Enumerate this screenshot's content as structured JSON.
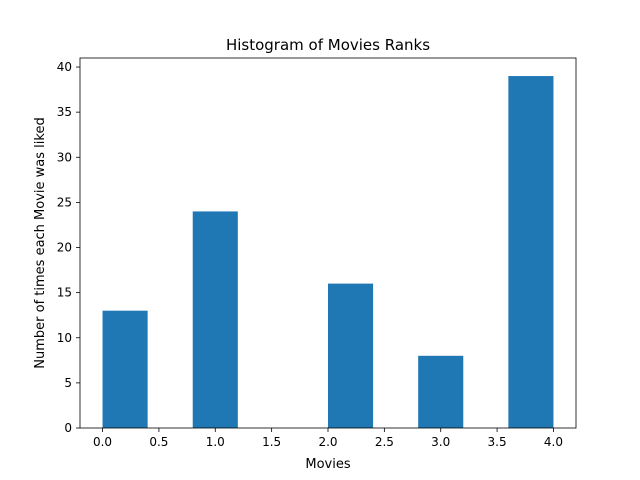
{
  "chart_data": {
    "type": "bar",
    "title": "Histogram of Movies Ranks",
    "xlabel": "Movies",
    "ylabel": "Number of times each Movie was liked",
    "xlim": [
      -0.2,
      4.2
    ],
    "ylim": [
      0,
      41
    ],
    "xticks": [
      0.0,
      0.5,
      1.0,
      1.5,
      2.0,
      2.5,
      3.0,
      3.5,
      4.0
    ],
    "xtick_labels": [
      "0.0",
      "0.5",
      "1.0",
      "1.5",
      "2.0",
      "2.5",
      "3.0",
      "3.5",
      "4.0"
    ],
    "yticks": [
      0,
      5,
      10,
      15,
      20,
      25,
      30,
      35,
      40
    ],
    "ytick_labels": [
      "0",
      "5",
      "10",
      "15",
      "20",
      "25",
      "30",
      "35",
      "40"
    ],
    "bins": [
      {
        "start": 0.0,
        "end": 0.4,
        "value": 13
      },
      {
        "start": 0.4,
        "end": 0.8,
        "value": 0
      },
      {
        "start": 0.8,
        "end": 1.2,
        "value": 24
      },
      {
        "start": 1.2,
        "end": 1.6,
        "value": 0
      },
      {
        "start": 1.6,
        "end": 2.0,
        "value": 0
      },
      {
        "start": 2.0,
        "end": 2.4,
        "value": 16
      },
      {
        "start": 2.4,
        "end": 2.8,
        "value": 0
      },
      {
        "start": 2.8,
        "end": 3.2,
        "value": 8
      },
      {
        "start": 3.2,
        "end": 3.6,
        "value": 0
      },
      {
        "start": 3.6,
        "end": 4.0,
        "value": 39
      }
    ],
    "colors": {
      "bar": "#1f77b4"
    },
    "grid": false,
    "legend": "none"
  }
}
